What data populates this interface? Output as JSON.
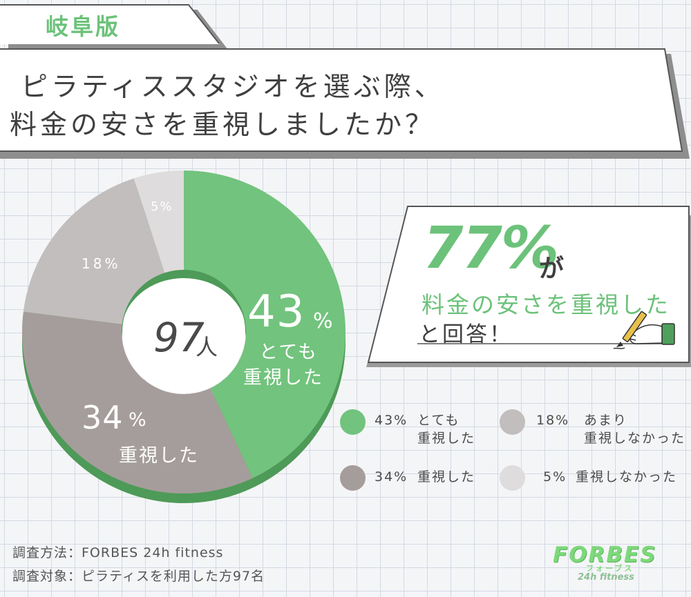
{
  "region_tab": "岐阜版",
  "question": {
    "line1": "ピラティススタジオを選ぶ際、",
    "line2": "料金の安さを重視しましたか？"
  },
  "callout": {
    "big_number": "77%",
    "suffix": "が",
    "line2": "料金の安さを重視した",
    "line3": "と回答！",
    "icon": "hand-writing-pencil-icon"
  },
  "chart_data": {
    "type": "pie",
    "donut": true,
    "center_value": "97",
    "center_unit": "人",
    "slices": [
      {
        "label_lines": [
          "とても",
          "重視した"
        ],
        "value": 43,
        "color": "#72c37d",
        "shadow": "#4e9a58"
      },
      {
        "label_lines": [
          "重視した"
        ],
        "value": 34,
        "color": "#a59d9b",
        "shadow": "#4e9a58"
      },
      {
        "label_lines": [
          "あまり",
          "重視しなかった"
        ],
        "value": 18,
        "color": "#c2bebd",
        "shadow": "#4e9a58"
      },
      {
        "label_lines": [
          "重視しなかった"
        ],
        "value": 5,
        "color": "#dedcdc",
        "shadow": "#4e9a58"
      }
    ],
    "slice_text": {
      "s43_num": "43",
      "s43_pct": "%",
      "s43_l1": "とても",
      "s43_l2": "重視した",
      "s34_num": "34",
      "s34_pct": "%",
      "s34_l1": "重視した",
      "s18": "18%",
      "s5": "5%"
    },
    "legend": [
      {
        "value_text": "43%",
        "line1": "とても",
        "line2": "重視した",
        "color": "#72c37d"
      },
      {
        "value_text": "18%",
        "line1": "あまり",
        "line2": "重視しなかった",
        "color": "#c2bebd"
      },
      {
        "value_text": "34%",
        "line1": "重視した",
        "line2": "",
        "color": "#a59d9b"
      },
      {
        "value_text": "5%",
        "line1": "重視しなかった",
        "line2": "",
        "color": "#dedcdc"
      }
    ]
  },
  "footer": {
    "method": "調査方法：FORBES 24h fitness",
    "target": "調査対象：ピラティスを利用した方97名"
  },
  "logo": {
    "main": "FORBES",
    "sub": "フォーブス",
    "sub2": "24h fitness"
  }
}
